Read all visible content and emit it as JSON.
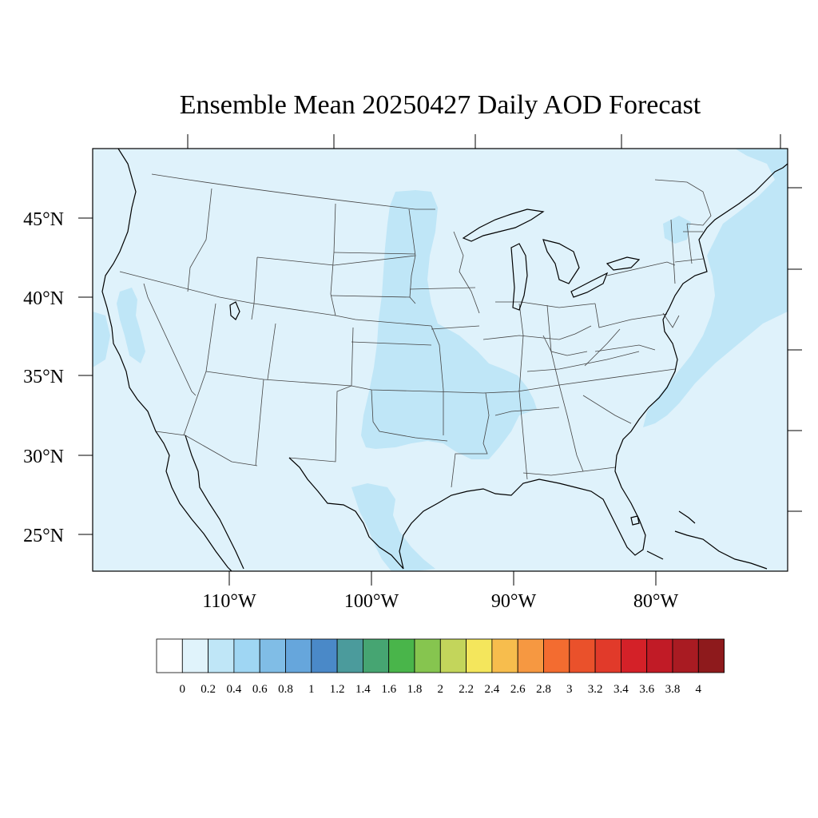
{
  "title": "Ensemble Mean 20250427 Daily AOD Forecast",
  "lat_labels": [
    "45°N",
    "40°N",
    "35°N",
    "30°N",
    "25°N"
  ],
  "lon_labels": [
    "110°W",
    "100°W",
    "90°W",
    "80°W"
  ],
  "colorbar": {
    "labels": [
      "0",
      "0.2",
      "0.4",
      "0.6",
      "0.8",
      "1",
      "1.2",
      "1.4",
      "1.6",
      "1.8",
      "2",
      "2.2",
      "2.4",
      "2.6",
      "2.8",
      "3",
      "3.2",
      "3.4",
      "3.6",
      "3.8",
      "4"
    ],
    "colors": [
      "#ffffff",
      "#e0f3fb",
      "#bfe6f7",
      "#9fd6f3",
      "#80bde6",
      "#66a6dc",
      "#4a89c8",
      "#4b9b9c",
      "#46a572",
      "#49b54a",
      "#86c54f",
      "#c3d55b",
      "#f4e65c",
      "#f7bd4d",
      "#f69841",
      "#f36c30",
      "#ea512b",
      "#e13a2a",
      "#d42128",
      "#c11b26",
      "#a91b22",
      "#8e1a1c"
    ]
  },
  "colors": {
    "background_field": "#dff2fb",
    "elevated_aod": "#bfe6f7"
  }
}
